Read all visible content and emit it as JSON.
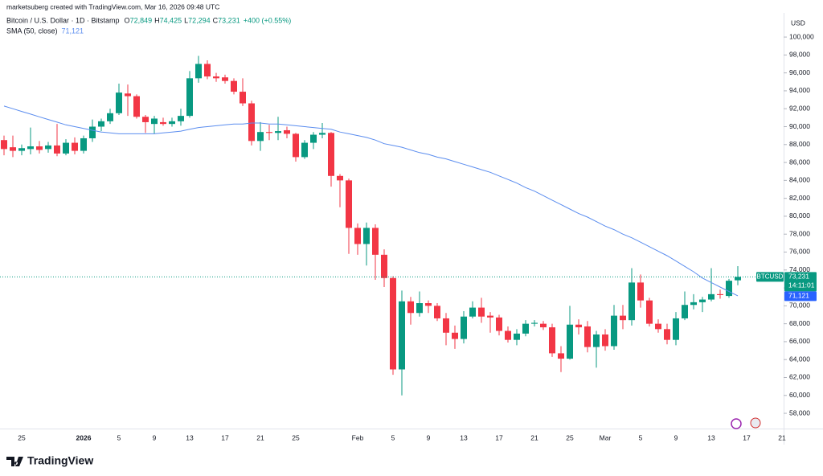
{
  "header": {
    "credit": "marketsuberg created with TradingView.com, Mar 16, 2026 09:48 UTC"
  },
  "footer": {
    "brand": "TradingView"
  },
  "chart_data": {
    "type": "candlestick",
    "title": "Bitcoin / U.S. Dollar · 1D · Bitstamp",
    "ohlc_legend": [
      {
        "key": "O",
        "value": "72,849"
      },
      {
        "key": "H",
        "value": "74,425"
      },
      {
        "key": "L",
        "value": "72,294"
      },
      {
        "key": "C",
        "value": "73,231"
      }
    ],
    "change": "+400 (+0.55%)",
    "currency": "USD",
    "symbol": "BTCUSD",
    "last_price_label": "73,231",
    "countdown": "14:11:01",
    "up_color": "#089981",
    "down_color": "#f23645",
    "grid": false,
    "categories": [
      null,
      null,
      "25",
      null,
      null,
      null,
      null,
      null,
      null,
      "2026",
      null,
      null,
      null,
      "5",
      null,
      null,
      null,
      "9",
      null,
      null,
      null,
      "13",
      null,
      null,
      null,
      "17",
      null,
      null,
      null,
      "21",
      null,
      null,
      null,
      "25",
      null,
      null,
      null,
      null,
      null,
      null,
      "Feb",
      null,
      null,
      null,
      "5",
      null,
      null,
      null,
      "9",
      null,
      null,
      null,
      "13",
      null,
      null,
      null,
      "17",
      null,
      null,
      null,
      "21",
      null,
      null,
      null,
      "25",
      null,
      null,
      null,
      "Mar",
      null,
      null,
      null,
      "5",
      null,
      null,
      null,
      "9",
      null,
      null,
      null,
      "13",
      null,
      null,
      null,
      "17",
      null,
      null,
      null,
      "21"
    ],
    "open": [
      88500,
      87700,
      87300,
      87500,
      87800,
      87500,
      87900,
      87000,
      88200,
      87300,
      88700,
      90000,
      90600,
      91500,
      93700,
      93400,
      91100,
      90300,
      90500,
      90300,
      90600,
      91200,
      95400,
      97000,
      95600,
      95500,
      95100,
      93900,
      92600,
      88400,
      89400,
      89300,
      89600,
      89200,
      86600,
      88200,
      89100,
      89300,
      84500,
      84000,
      78700,
      76900,
      78700,
      75700,
      73100,
      62900,
      70500,
      69200,
      70300,
      70000,
      68600,
      67000,
      66300,
      68800,
      69800,
      68900,
      68700,
      67200,
      66200,
      66900,
      68000,
      68000,
      67600,
      64700,
      64100,
      67900,
      67700,
      65400,
      66800,
      65500,
      68900,
      68400,
      72600,
      70600,
      68000,
      67400,
      66200,
      68600,
      70100,
      70400,
      70700,
      71300,
      71100,
      72849,
      null,
      null,
      null,
      null,
      null
    ],
    "high": [
      89000,
      89000,
      88000,
      89900,
      88400,
      88300,
      90300,
      88600,
      88800,
      89000,
      90800,
      90900,
      92000,
      94800,
      94700,
      93600,
      91300,
      91200,
      91000,
      91000,
      92000,
      96200,
      97900,
      97400,
      96000,
      95800,
      95400,
      95400,
      92900,
      90500,
      90200,
      91100,
      90000,
      89300,
      88500,
      89400,
      90400,
      89400,
      84700,
      84200,
      79200,
      79300,
      79100,
      76300,
      73300,
      71700,
      71000,
      71600,
      70600,
      70300,
      69200,
      67800,
      69400,
      70500,
      70900,
      69300,
      69000,
      67700,
      67400,
      68400,
      68400,
      68300,
      68000,
      65500,
      70000,
      68500,
      68300,
      67200,
      67400,
      70100,
      70100,
      74200,
      73500,
      70900,
      68500,
      68000,
      69300,
      71600,
      71300,
      71000,
      74200,
      71800,
      73000,
      74425,
      null,
      null,
      null,
      null,
      null
    ],
    "low": [
      86800,
      86600,
      86800,
      86900,
      87000,
      87100,
      86700,
      86800,
      86900,
      87000,
      88300,
      89500,
      90300,
      91300,
      91200,
      90900,
      89300,
      89200,
      90100,
      90000,
      90100,
      91000,
      94900,
      95300,
      95000,
      94800,
      93600,
      92300,
      87900,
      87300,
      88500,
      88500,
      88700,
      86100,
      86400,
      87500,
      88700,
      83300,
      81000,
      75800,
      75700,
      74500,
      72900,
      72100,
      62300,
      60000,
      67900,
      68800,
      69200,
      68300,
      65600,
      65200,
      65800,
      68600,
      68100,
      67000,
      66700,
      65900,
      65600,
      66600,
      67700,
      67300,
      64300,
      62600,
      64000,
      66800,
      64800,
      63100,
      65000,
      65100,
      67400,
      67800,
      69800,
      67700,
      67000,
      65700,
      65600,
      68400,
      69600,
      69300,
      70500,
      70800,
      70900,
      72294,
      null,
      null,
      null,
      null,
      null
    ],
    "close": [
      87500,
      87300,
      87600,
      87800,
      87400,
      87900,
      87000,
      88200,
      87300,
      88700,
      90000,
      90600,
      91500,
      93800,
      93400,
      91100,
      90500,
      90900,
      90300,
      90600,
      91200,
      95400,
      97000,
      95600,
      95400,
      95100,
      93900,
      92600,
      88400,
      89400,
      89300,
      89500,
      89200,
      86600,
      88200,
      89100,
      89300,
      84500,
      84000,
      78700,
      76900,
      78700,
      75700,
      73100,
      62900,
      70500,
      69200,
      70300,
      70000,
      68600,
      67000,
      66300,
      68800,
      69800,
      68800,
      68700,
      67200,
      66200,
      66900,
      68000,
      68100,
      67600,
      64700,
      64100,
      67900,
      67600,
      65400,
      66800,
      65500,
      68900,
      68400,
      72600,
      70600,
      68000,
      67400,
      66200,
      68600,
      70100,
      70400,
      70700,
      71300,
      71200,
      72800,
      73231,
      null,
      null,
      null,
      null,
      null
    ],
    "series": [
      {
        "name": "SMA (50, close)",
        "color": "#5b8def",
        "last_label": "71,121",
        "values": [
          92300,
          92000,
          91700,
          91400,
          91100,
          90800,
          90500,
          90200,
          90000,
          89800,
          89600,
          89400,
          89300,
          89200,
          89200,
          89200,
          89200,
          89200,
          89300,
          89400,
          89500,
          89700,
          89900,
          90000,
          90100,
          90200,
          90300,
          90300,
          90400,
          90400,
          90300,
          90300,
          90200,
          90100,
          90000,
          89900,
          89800,
          89700,
          89400,
          89200,
          89000,
          88800,
          88500,
          88100,
          87900,
          87700,
          87400,
          87100,
          86900,
          86600,
          86400,
          86100,
          85800,
          85500,
          85200,
          84900,
          84500,
          84100,
          83700,
          83200,
          82800,
          82300,
          81800,
          81300,
          80800,
          80300,
          79900,
          79400,
          78900,
          78500,
          78000,
          77600,
          77100,
          76600,
          76100,
          75600,
          75000,
          74400,
          73800,
          73100,
          72600,
          72100,
          71600,
          71121,
          null,
          null,
          null,
          null,
          null
        ]
      }
    ],
    "ylim": [
      56300,
      102700
    ],
    "yticks": [
      {
        "value": 58000,
        "label": "58,000"
      },
      {
        "value": 60000,
        "label": "60,000"
      },
      {
        "value": 62000,
        "label": "62,000"
      },
      {
        "value": 64000,
        "label": "64,000"
      },
      {
        "value": 66000,
        "label": "66,000"
      },
      {
        "value": 68000,
        "label": "68,000"
      },
      {
        "value": 70000,
        "label": "70,000"
      },
      {
        "value": 72000,
        "label": "72,000"
      },
      {
        "value": 74000,
        "label": "74,000"
      },
      {
        "value": 76000,
        "label": "76,000"
      },
      {
        "value": 78000,
        "label": "78,000"
      },
      {
        "value": 80000,
        "label": "80,000"
      },
      {
        "value": 82000,
        "label": "82,000"
      },
      {
        "value": 84000,
        "label": "84,000"
      },
      {
        "value": 86000,
        "label": "86,000"
      },
      {
        "value": 88000,
        "label": "88,000"
      },
      {
        "value": 90000,
        "label": "90,000"
      },
      {
        "value": 92000,
        "label": "92,000"
      },
      {
        "value": 94000,
        "label": "94,000"
      },
      {
        "value": 96000,
        "label": "96,000"
      },
      {
        "value": 98000,
        "label": "98,000"
      },
      {
        "value": 100000,
        "label": "100,000"
      }
    ]
  }
}
